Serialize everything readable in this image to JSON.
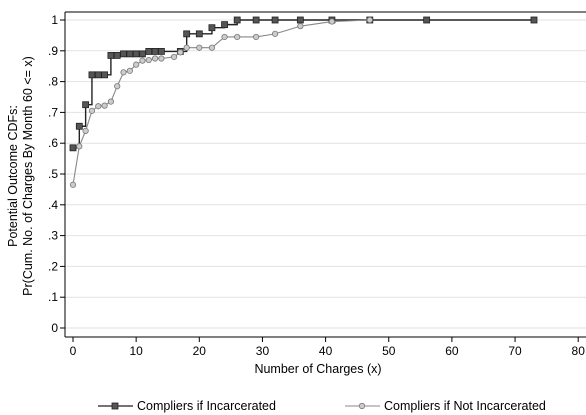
{
  "chart_data": {
    "type": "line",
    "title": "",
    "xlabel": "Number of Charges (x)",
    "ylabel_line1": "Potential Outcome CDFs:",
    "ylabel_line2": "Pr(Cum. No. of Charges By Month 60 <= x)",
    "xlim": [
      0,
      80
    ],
    "ylim": [
      0,
      1
    ],
    "x_ticks": [
      0,
      10,
      20,
      30,
      40,
      50,
      60,
      70,
      80
    ],
    "y_ticks": [
      0,
      0.1,
      0.2,
      0.3,
      0.4,
      0.5,
      0.6,
      0.7,
      0.8,
      0.9,
      1.0
    ],
    "y_tick_labels": [
      "0",
      ".1",
      ".2",
      ".3",
      ".4",
      ".5",
      ".6",
      ".7",
      ".8",
      ".9",
      "1"
    ],
    "grid": "horizontal",
    "legend_position": "bottom",
    "series": [
      {
        "name": "Compliers if Incarcerated",
        "color": "#222222",
        "marker": "square",
        "step": true,
        "x": [
          0,
          1,
          2,
          3,
          4,
          5,
          6,
          7,
          8,
          9,
          10,
          11,
          12,
          13,
          14,
          17,
          18,
          20,
          22,
          24,
          26,
          29,
          32,
          36,
          41,
          47,
          56,
          73
        ],
        "y": [
          0.585,
          0.655,
          0.725,
          0.822,
          0.822,
          0.822,
          0.885,
          0.885,
          0.89,
          0.89,
          0.89,
          0.89,
          0.898,
          0.898,
          0.898,
          0.898,
          0.955,
          0.955,
          0.975,
          0.985,
          1.0,
          1.0,
          1.0,
          1.0,
          1.0,
          1.0,
          1.0,
          1.0
        ]
      },
      {
        "name": "Compliers if Not Incarcerated",
        "color": "#888888",
        "marker": "circle",
        "step": false,
        "x": [
          0,
          1,
          2,
          3,
          4,
          5,
          6,
          7,
          8,
          9,
          10,
          11,
          12,
          13,
          14,
          16,
          17,
          18,
          20,
          22,
          24,
          26,
          29,
          32,
          36,
          41,
          47
        ],
        "y": [
          0.465,
          0.59,
          0.64,
          0.705,
          0.72,
          0.722,
          0.735,
          0.785,
          0.83,
          0.835,
          0.855,
          0.868,
          0.87,
          0.875,
          0.875,
          0.88,
          0.895,
          0.91,
          0.91,
          0.91,
          0.945,
          0.945,
          0.945,
          0.955,
          0.98,
          0.995,
          1.0
        ]
      }
    ]
  }
}
